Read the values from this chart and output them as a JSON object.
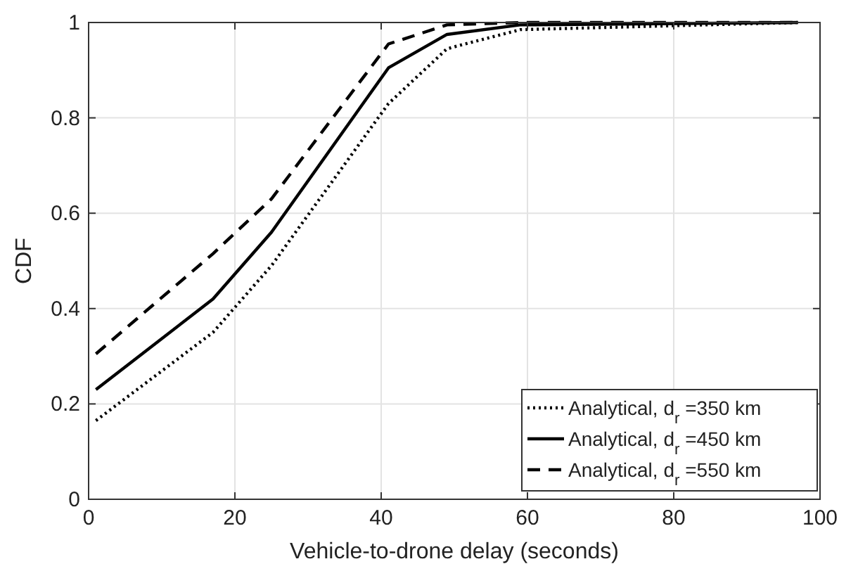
{
  "chart_data": {
    "type": "line",
    "xlabel": "Vehicle-to-drone delay (seconds)",
    "ylabel": "CDF",
    "x": [
      1,
      17,
      25,
      41,
      49,
      59,
      97
    ],
    "series": [
      {
        "name": "Analytical, d$_{r}$ =350 km",
        "color": "#000000",
        "line_style": "dotted",
        "values": [
          0.165,
          0.35,
          0.49,
          0.83,
          0.945,
          0.985,
          1
        ]
      },
      {
        "name": "Analytical, d$_{r}$ =450 km",
        "color": "#000000",
        "line_style": "solid",
        "values": [
          0.23,
          0.42,
          0.56,
          0.905,
          0.975,
          0.995,
          1
        ]
      },
      {
        "name": "Analytical, d$_{r}$ =550 km",
        "color": "#000000",
        "line_style": "dashed",
        "values": [
          0.305,
          0.515,
          0.63,
          0.955,
          0.995,
          1,
          1
        ]
      }
    ],
    "xlim": [
      0,
      100
    ],
    "xticks": [
      0,
      20,
      40,
      60,
      80,
      100
    ],
    "ylim": [
      0,
      1
    ],
    "yticks": [
      0,
      0.2,
      0.4,
      0.6,
      0.8,
      1
    ],
    "grid": true,
    "legend": "bottom right"
  }
}
